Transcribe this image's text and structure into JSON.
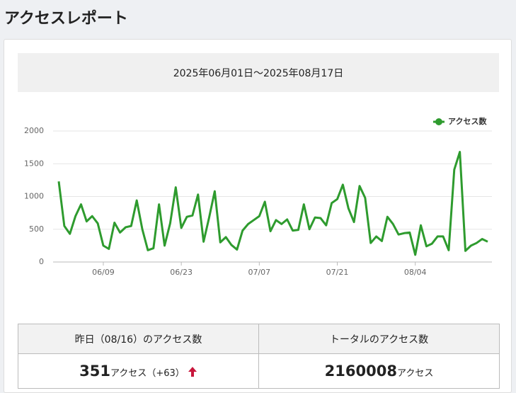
{
  "header": {
    "title": "アクセスレポート"
  },
  "period": "2025年06月01日～2025年08月17日",
  "chart_data": {
    "type": "line",
    "categories": [
      null,
      null,
      null,
      null,
      null,
      null,
      null,
      null,
      "06/09",
      null,
      null,
      null,
      null,
      null,
      null,
      null,
      null,
      null,
      null,
      null,
      null,
      null,
      "06/23",
      null,
      null,
      null,
      null,
      null,
      null,
      null,
      null,
      null,
      null,
      null,
      null,
      null,
      "07/07",
      null,
      null,
      null,
      null,
      null,
      null,
      null,
      null,
      null,
      null,
      null,
      null,
      null,
      "07/21",
      null,
      null,
      null,
      null,
      null,
      null,
      null,
      null,
      null,
      null,
      null,
      null,
      null,
      "08/04",
      null,
      null,
      null,
      null,
      null,
      null,
      null,
      null,
      null,
      null,
      null,
      null,
      null
    ],
    "series": [
      {
        "name": "アクセス数",
        "color": "#2e9b2e",
        "values": [
          1230,
          550,
          430,
          700,
          880,
          620,
          700,
          590,
          250,
          200,
          600,
          450,
          530,
          550,
          940,
          500,
          180,
          210,
          880,
          250,
          590,
          1140,
          520,
          690,
          710,
          1030,
          310,
          680,
          1080,
          300,
          380,
          260,
          190,
          480,
          580,
          640,
          700,
          920,
          470,
          640,
          580,
          650,
          480,
          490,
          880,
          500,
          680,
          670,
          560,
          900,
          960,
          1180,
          820,
          610,
          1160,
          980,
          290,
          390,
          320,
          690,
          580,
          420,
          440,
          450,
          110,
          560,
          240,
          280,
          390,
          390,
          180,
          1410,
          1680,
          170,
          250,
          290,
          351,
          310
        ]
      }
    ],
    "ylim": [
      0,
      2000
    ],
    "yticks": [
      0,
      500,
      1000,
      1500,
      2000
    ],
    "grid": true,
    "legend": "top-right"
  },
  "summary": {
    "headers": [
      "昨日（08/16）のアクセス数",
      "トータルのアクセス数"
    ],
    "yesterday": {
      "count": 351,
      "unit": "アクセス",
      "change": "（+63）"
    },
    "total": {
      "count": 2160008,
      "unit": "アクセス"
    }
  }
}
